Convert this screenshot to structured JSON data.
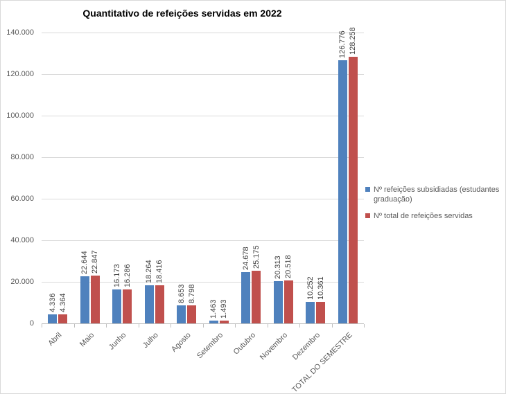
{
  "chart_data": {
    "type": "bar",
    "title": "Quantitativo de refeições servidas em 2022",
    "categories": [
      "Abril",
      "Maio",
      "Junho",
      "Julho",
      "Agosto",
      "Setembro",
      "Outubro",
      "Novembro",
      "Dezembro",
      "TOTAL DO SEMESTRE"
    ],
    "series": [
      {
        "name": "Nº refeições subsidiadas (estudantes graduação)",
        "color": "#4F81BD",
        "values": [
          4336,
          22644,
          16173,
          18264,
          8653,
          1463,
          24678,
          20313,
          10252,
          126776
        ],
        "labels": [
          "4.336",
          "22.644",
          "16.173",
          "18.264",
          "8.653",
          "1.463",
          "24.678",
          "20.313",
          "10.252",
          "126.776"
        ]
      },
      {
        "name": "Nº total de refeições servidas",
        "color": "#C0504D",
        "values": [
          4364,
          22847,
          16286,
          18416,
          8798,
          1493,
          25175,
          20518,
          10361,
          128258
        ],
        "labels": [
          "4.364",
          "22.847",
          "16.286",
          "18.416",
          "8.798",
          "1.493",
          "25.175",
          "20.518",
          "10.361",
          "128.258"
        ]
      }
    ],
    "y_axis": {
      "min": 0,
      "max": 140000,
      "tick_interval": 20000,
      "tick_labels": [
        "0",
        "20.000",
        "40.000",
        "60.000",
        "80.000",
        "100.000",
        "120.000",
        "140.000"
      ]
    },
    "x_axis": {
      "label_rotation_deg": -45
    },
    "data_labels": {
      "rotation_deg": -90
    },
    "legend_position": "right",
    "grid": true,
    "colors": {
      "background": "#FFFFFF",
      "gridline": "#D9D9D9",
      "axis_line": "#BFBFBF",
      "axis_text": "#595959",
      "data_label_text": "#3F3F3F",
      "title_text": "#000000",
      "border": "#D9D9D9"
    }
  }
}
